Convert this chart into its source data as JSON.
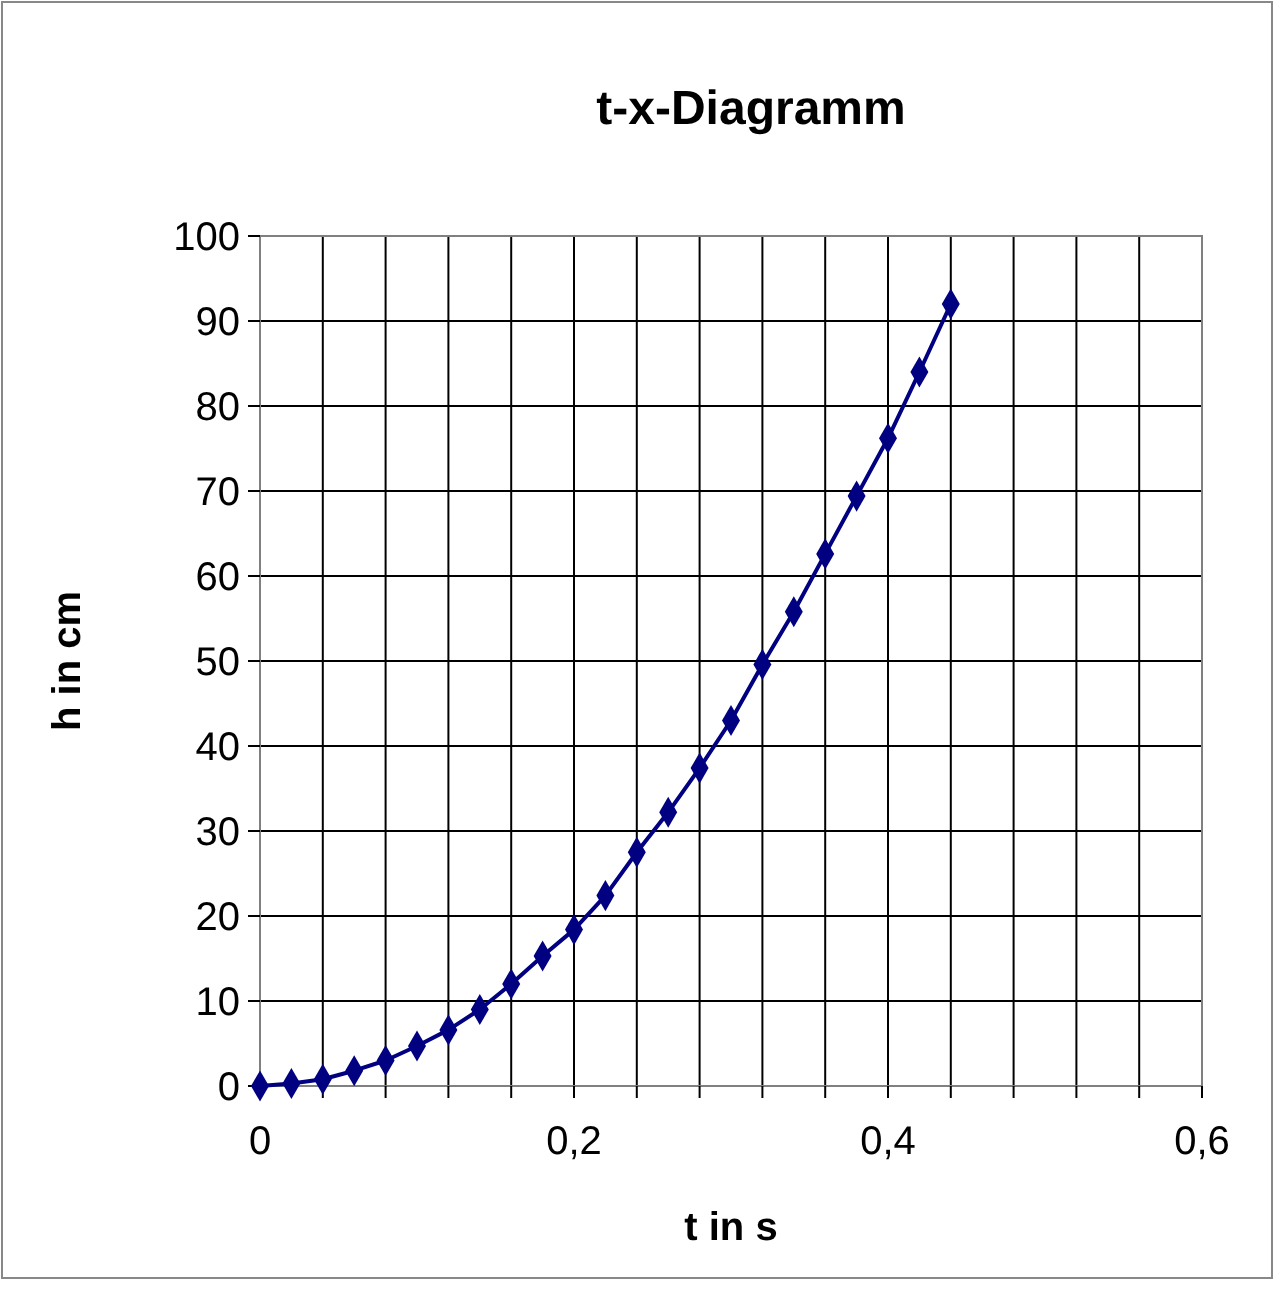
{
  "chart_data": {
    "type": "line",
    "title": "t-x-Diagramm",
    "xlabel": "t in s",
    "ylabel": "h in cm",
    "x": [
      0,
      0.02,
      0.04,
      0.06,
      0.08,
      0.1,
      0.12,
      0.14,
      0.16,
      0.18,
      0.2,
      0.22,
      0.24,
      0.26,
      0.28,
      0.3,
      0.32,
      0.34,
      0.36,
      0.38,
      0.4,
      0.42,
      0.44
    ],
    "series": [
      {
        "color": "#000080",
        "values": [
          0,
          0.3,
          0.8,
          1.8,
          3,
          4.7,
          6.6,
          9,
          12,
          15.3,
          18.4,
          22.4,
          27.5,
          32.2,
          37.4,
          43,
          49.6,
          55.8,
          62.6,
          69.4,
          76.2,
          84,
          92
        ]
      }
    ],
    "xlim": [
      0,
      0.6
    ],
    "xticks": [
      0,
      {
        "value": 0.04,
        "label": null
      },
      {
        "value": 0.08,
        "label": null
      },
      {
        "value": 0.12,
        "label": null
      },
      {
        "value": 0.16,
        "label": null
      },
      {
        "value": 0.2,
        "label": "0,2"
      },
      {
        "value": 0.24,
        "label": null
      },
      {
        "value": 0.28,
        "label": null
      },
      {
        "value": 0.32,
        "label": null
      },
      {
        "value": 0.36,
        "label": null
      },
      {
        "value": 0.4,
        "label": "0,4"
      },
      {
        "value": 0.44,
        "label": null
      },
      {
        "value": 0.48,
        "label": null
      },
      {
        "value": 0.52,
        "label": null
      },
      {
        "value": 0.56,
        "label": null
      },
      {
        "value": 0.6,
        "label": "0,6"
      }
    ],
    "ylim": [
      0,
      100
    ],
    "yticks": [
      0,
      10,
      20,
      30,
      40,
      50,
      60,
      70,
      80,
      90,
      100
    ],
    "grid": true,
    "marker": "diamond",
    "line_style": "solid"
  }
}
